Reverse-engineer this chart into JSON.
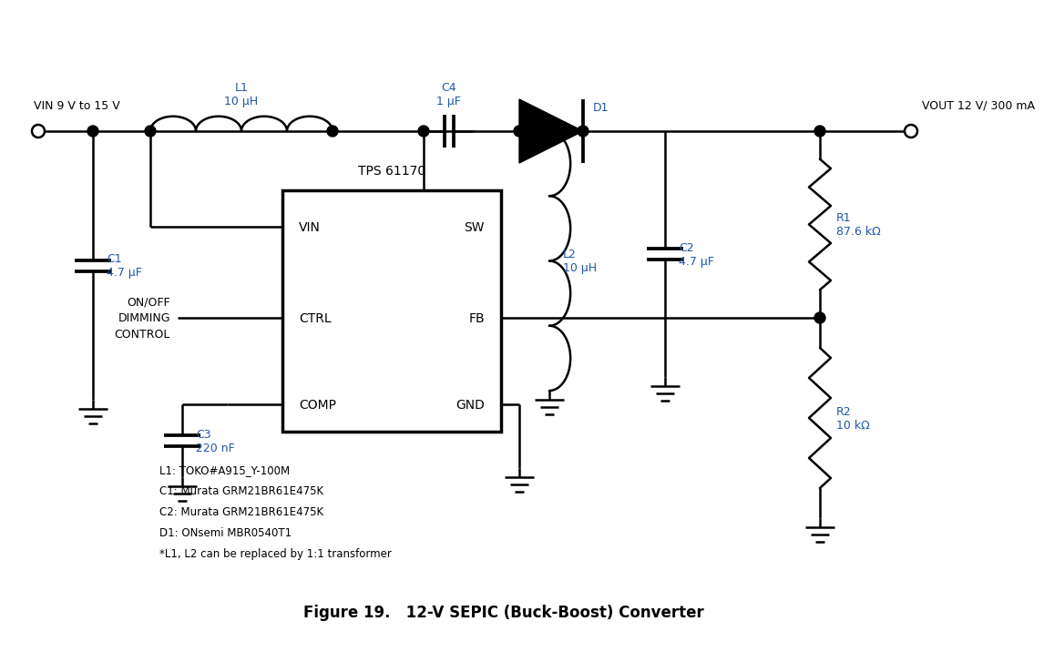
{
  "title": "Figure 19.   12-V SEPIC (Buck-Boost) Converter",
  "line_color": "#000000",
  "text_color": "#000000",
  "label_color": "#2255aa",
  "bg_color": "#ffffff",
  "vin_label": "VIN 9 V to 15 V",
  "vout_label": "VOUT 12 V/ 300 mA",
  "ic_label": "TPS 61170",
  "component_labels": {
    "L1": "L1\n10 μH",
    "L2": "L2\n10 μH",
    "C1": "C1\n4.7 μF",
    "C2": "C2\n4.7 μF",
    "C3": "C3\n220 nF",
    "C4": "C4\n1 μF",
    "D1": "D1",
    "R1": "R1\n87.6 kΩ",
    "R2": "R2\n10 kΩ"
  },
  "ctrl_label": "ON/OFF\nDIMMING\nCONTROL",
  "bom_lines": [
    "L1: TOKO#A915_Y-100M",
    "C1: Murata GRM21BR61E475K",
    "C2: Murata GRM21BR61E475K",
    "D1: ONsemi MBR0540T1",
    "*L1, L2 can be replaced by 1:1 transformer"
  ]
}
